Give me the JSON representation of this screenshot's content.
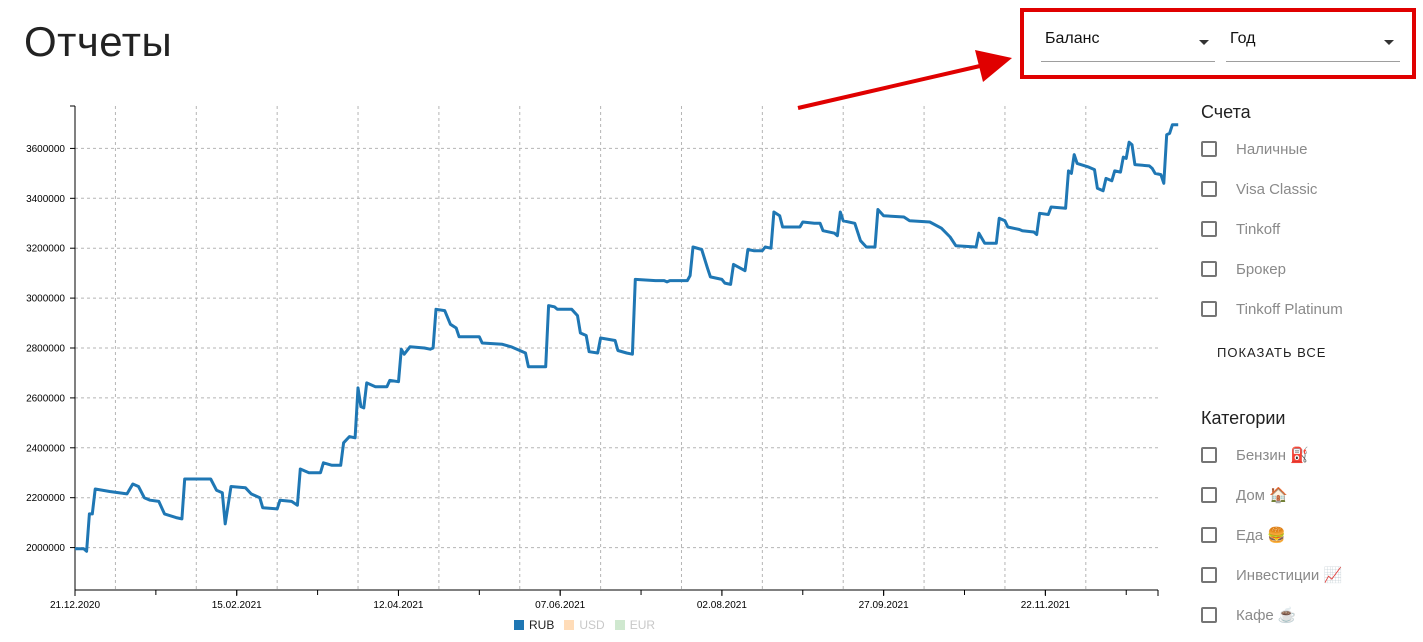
{
  "page": {
    "title": "Отчеты"
  },
  "filters": {
    "report_type": {
      "selected": "Баланс"
    },
    "period": {
      "selected": "Год"
    },
    "highlight_color": "#e00000"
  },
  "sidebar": {
    "accounts": {
      "heading": "Счета",
      "items": [
        {
          "label": "Наличные"
        },
        {
          "label": "Visa Classic"
        },
        {
          "label": "Tinkoff"
        },
        {
          "label": "Брокер"
        },
        {
          "label": "Tinkoff Platinum"
        }
      ],
      "show_all": "ПОКАЗАТЬ ВСЕ"
    },
    "categories": {
      "heading": "Категории",
      "items": [
        {
          "label": "Бензин ⛽"
        },
        {
          "label": "Дом 🏠"
        },
        {
          "label": "Еда 🍔"
        },
        {
          "label": "Инвестиции 📈"
        },
        {
          "label": "Кафе ☕"
        }
      ]
    }
  },
  "legend": [
    {
      "label": "RUB",
      "color": "#1f77b4",
      "active": true
    },
    {
      "label": "USD",
      "color": "#ffdcb8",
      "active": false
    },
    {
      "label": "EUR",
      "color": "#cfe8cf",
      "active": false
    }
  ],
  "chart_data": {
    "type": "line",
    "xlabel": "",
    "ylabel": "",
    "grid": true,
    "ylim": [
      1830000,
      3770000
    ],
    "xlim": [
      "2020-12-21",
      "2021-12-31"
    ],
    "x_tick_labels": [
      "21.12.2020",
      "15.02.2021",
      "12.04.2021",
      "07.06.2021",
      "02.08.2021",
      "27.09.2021",
      "22.11.2021"
    ],
    "y_tick_labels": [
      "2000000",
      "2200000",
      "2400000",
      "2600000",
      "2800000",
      "3000000",
      "3200000",
      "3400000",
      "3600000"
    ],
    "series": [
      {
        "name": "RUB",
        "color": "#1f77b4",
        "points": [
          [
            "2020-12-21",
            1995000
          ],
          [
            "2020-12-24",
            1995000
          ],
          [
            "2020-12-25",
            1985000
          ],
          [
            "2020-12-26",
            2135000
          ],
          [
            "2020-12-27",
            2135000
          ],
          [
            "2020-12-28",
            2235000
          ],
          [
            "2021-01-02",
            2225000
          ],
          [
            "2021-01-08",
            2215000
          ],
          [
            "2021-01-10",
            2255000
          ],
          [
            "2021-01-12",
            2245000
          ],
          [
            "2021-01-14",
            2200000
          ],
          [
            "2021-01-16",
            2190000
          ],
          [
            "2021-01-19",
            2185000
          ],
          [
            "2021-01-21",
            2135000
          ],
          [
            "2021-01-25",
            2120000
          ],
          [
            "2021-01-27",
            2115000
          ],
          [
            "2021-01-28",
            2275000
          ],
          [
            "2021-02-06",
            2275000
          ],
          [
            "2021-02-08",
            2230000
          ],
          [
            "2021-02-10",
            2220000
          ],
          [
            "2021-02-11",
            2095000
          ],
          [
            "2021-02-13",
            2245000
          ],
          [
            "2021-02-18",
            2240000
          ],
          [
            "2021-02-20",
            2215000
          ],
          [
            "2021-02-23",
            2200000
          ],
          [
            "2021-02-24",
            2160000
          ],
          [
            "2021-03-01",
            2155000
          ],
          [
            "2021-03-02",
            2190000
          ],
          [
            "2021-03-06",
            2185000
          ],
          [
            "2021-03-08",
            2170000
          ],
          [
            "2021-03-09",
            2315000
          ],
          [
            "2021-03-12",
            2300000
          ],
          [
            "2021-03-16",
            2300000
          ],
          [
            "2021-03-17",
            2340000
          ],
          [
            "2021-03-20",
            2330000
          ],
          [
            "2021-03-23",
            2330000
          ],
          [
            "2021-03-24",
            2420000
          ],
          [
            "2021-03-26",
            2445000
          ],
          [
            "2021-03-28",
            2440000
          ],
          [
            "2021-03-29",
            2640000
          ],
          [
            "2021-03-30",
            2565000
          ],
          [
            "2021-03-31",
            2560000
          ],
          [
            "2021-04-01",
            2660000
          ],
          [
            "2021-04-04",
            2645000
          ],
          [
            "2021-04-08",
            2645000
          ],
          [
            "2021-04-09",
            2670000
          ],
          [
            "2021-04-12",
            2665000
          ],
          [
            "2021-04-13",
            2795000
          ],
          [
            "2021-04-14",
            2775000
          ],
          [
            "2021-04-16",
            2805000
          ],
          [
            "2021-04-21",
            2800000
          ],
          [
            "2021-04-23",
            2795000
          ],
          [
            "2021-04-24",
            2800000
          ],
          [
            "2021-04-25",
            2955000
          ],
          [
            "2021-04-28",
            2950000
          ],
          [
            "2021-04-30",
            2895000
          ],
          [
            "2021-05-02",
            2880000
          ],
          [
            "2021-05-03",
            2845000
          ],
          [
            "2021-05-10",
            2845000
          ],
          [
            "2021-05-11",
            2820000
          ],
          [
            "2021-05-18",
            2815000
          ],
          [
            "2021-05-21",
            2805000
          ],
          [
            "2021-05-23",
            2795000
          ],
          [
            "2021-05-26",
            2780000
          ],
          [
            "2021-05-27",
            2725000
          ],
          [
            "2021-06-02",
            2725000
          ],
          [
            "2021-06-03",
            2970000
          ],
          [
            "2021-06-05",
            2965000
          ],
          [
            "2021-06-06",
            2955000
          ],
          [
            "2021-06-11",
            2955000
          ],
          [
            "2021-06-13",
            2930000
          ],
          [
            "2021-06-14",
            2860000
          ],
          [
            "2021-06-16",
            2850000
          ],
          [
            "2021-06-17",
            2785000
          ],
          [
            "2021-06-20",
            2780000
          ],
          [
            "2021-06-21",
            2840000
          ],
          [
            "2021-06-26",
            2830000
          ],
          [
            "2021-06-27",
            2790000
          ],
          [
            "2021-06-30",
            2780000
          ],
          [
            "2021-07-02",
            2775000
          ],
          [
            "2021-07-03",
            3075000
          ],
          [
            "2021-07-10",
            3070000
          ],
          [
            "2021-07-13",
            3070000
          ],
          [
            "2021-07-14",
            3065000
          ],
          [
            "2021-07-15",
            3070000
          ],
          [
            "2021-07-21",
            3070000
          ],
          [
            "2021-07-22",
            3090000
          ],
          [
            "2021-07-23",
            3205000
          ],
          [
            "2021-07-26",
            3195000
          ],
          [
            "2021-07-28",
            3120000
          ],
          [
            "2021-07-29",
            3085000
          ],
          [
            "2021-08-02",
            3075000
          ],
          [
            "2021-08-03",
            3060000
          ],
          [
            "2021-08-05",
            3055000
          ],
          [
            "2021-08-06",
            3135000
          ],
          [
            "2021-08-10",
            3110000
          ],
          [
            "2021-08-11",
            3195000
          ],
          [
            "2021-08-13",
            3190000
          ],
          [
            "2021-08-16",
            3190000
          ],
          [
            "2021-08-17",
            3205000
          ],
          [
            "2021-08-19",
            3200000
          ],
          [
            "2021-08-20",
            3345000
          ],
          [
            "2021-08-22",
            3330000
          ],
          [
            "2021-08-23",
            3285000
          ],
          [
            "2021-08-29",
            3285000
          ],
          [
            "2021-08-30",
            3305000
          ],
          [
            "2021-09-03",
            3300000
          ],
          [
            "2021-09-05",
            3300000
          ],
          [
            "2021-09-06",
            3270000
          ],
          [
            "2021-09-10",
            3260000
          ],
          [
            "2021-09-11",
            3250000
          ],
          [
            "2021-09-12",
            3345000
          ],
          [
            "2021-09-13",
            3310000
          ],
          [
            "2021-09-17",
            3300000
          ],
          [
            "2021-09-19",
            3230000
          ],
          [
            "2021-09-21",
            3205000
          ],
          [
            "2021-09-24",
            3205000
          ],
          [
            "2021-09-25",
            3355000
          ],
          [
            "2021-09-27",
            3330000
          ],
          [
            "2021-10-04",
            3325000
          ],
          [
            "2021-10-06",
            3310000
          ],
          [
            "2021-10-13",
            3305000
          ],
          [
            "2021-10-17",
            3280000
          ],
          [
            "2021-10-20",
            3245000
          ],
          [
            "2021-10-22",
            3210000
          ],
          [
            "2021-10-29",
            3205000
          ],
          [
            "2021-10-30",
            3260000
          ],
          [
            "2021-11-01",
            3220000
          ],
          [
            "2021-11-05",
            3220000
          ],
          [
            "2021-11-06",
            3320000
          ],
          [
            "2021-11-08",
            3310000
          ],
          [
            "2021-11-09",
            3285000
          ],
          [
            "2021-11-13",
            3275000
          ],
          [
            "2021-11-14",
            3270000
          ],
          [
            "2021-11-18",
            3265000
          ],
          [
            "2021-11-19",
            3255000
          ],
          [
            "2021-11-20",
            3340000
          ],
          [
            "2021-11-23",
            3335000
          ],
          [
            "2021-11-24",
            3365000
          ],
          [
            "2021-11-29",
            3360000
          ],
          [
            "2021-11-30",
            3510000
          ],
          [
            "2021-12-01",
            3500000
          ],
          [
            "2021-12-02",
            3575000
          ],
          [
            "2021-12-03",
            3540000
          ],
          [
            "2021-12-07",
            3525000
          ],
          [
            "2021-12-09",
            3515000
          ],
          [
            "2021-12-10",
            3440000
          ],
          [
            "2021-12-12",
            3430000
          ],
          [
            "2021-12-13",
            3480000
          ],
          [
            "2021-12-15",
            3470000
          ],
          [
            "2021-12-16",
            3510000
          ],
          [
            "2021-12-18",
            3505000
          ],
          [
            "2021-12-19",
            3565000
          ],
          [
            "2021-12-20",
            3560000
          ],
          [
            "2021-12-21",
            3625000
          ],
          [
            "2021-12-22",
            3615000
          ],
          [
            "2021-12-23",
            3535000
          ],
          [
            "2021-12-28",
            3530000
          ],
          [
            "2021-12-29",
            3520000
          ],
          [
            "2021-12-30",
            3500000
          ],
          [
            "2022-01-01",
            3495000
          ],
          [
            "2022-01-02",
            3460000
          ],
          [
            "2022-01-03",
            3655000
          ],
          [
            "2022-01-04",
            3660000
          ],
          [
            "2022-01-05",
            3695000
          ],
          [
            "2022-01-07",
            3695000
          ]
        ]
      }
    ]
  }
}
